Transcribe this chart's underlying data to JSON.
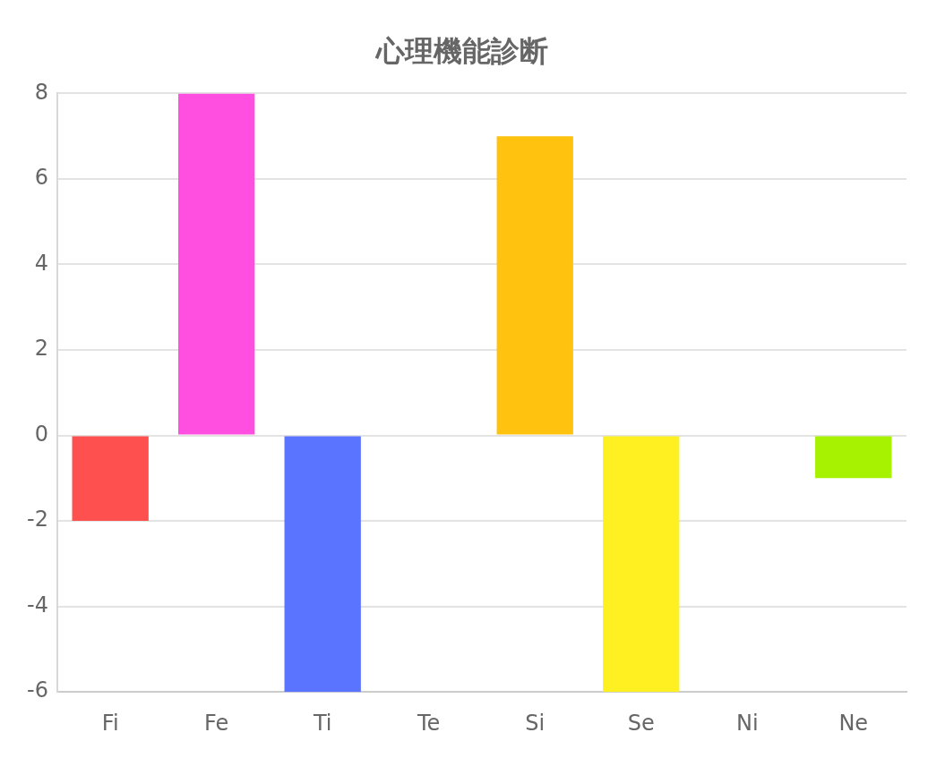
{
  "chart_data": {
    "type": "bar",
    "title": "心理機能診断",
    "categories": [
      "Fi",
      "Fe",
      "Ti",
      "Te",
      "Si",
      "Se",
      "Ni",
      "Ne"
    ],
    "values": [
      -2,
      8,
      -6,
      0,
      7,
      -6,
      0,
      -1
    ],
    "colors": [
      "#ff5050",
      "#ff4fe0",
      "#5b74ff",
      null,
      "#ffc20e",
      "#fff022",
      null,
      "#a6f200"
    ],
    "ylim": [
      -6,
      8
    ],
    "yticks": [
      -6,
      -4,
      -2,
      0,
      2,
      4,
      6,
      8
    ],
    "grid": "y",
    "legend": false
  }
}
